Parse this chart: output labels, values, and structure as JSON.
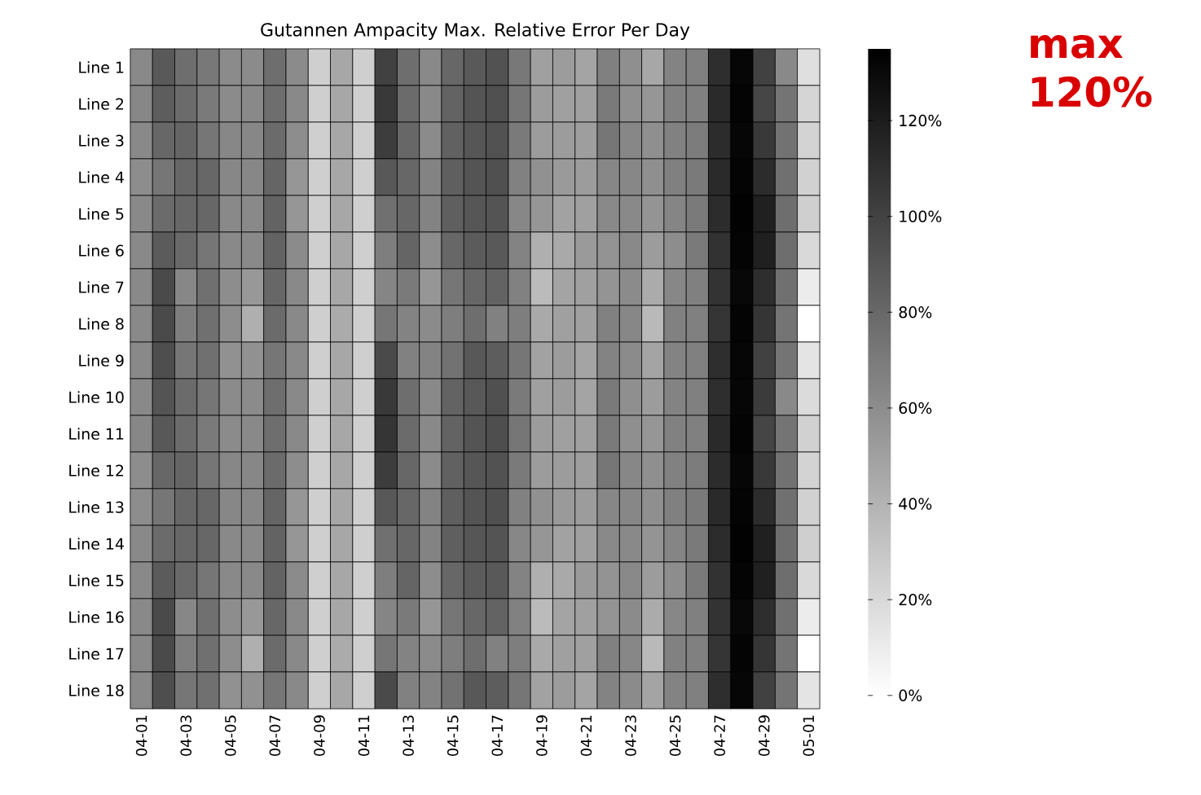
{
  "chart_data": {
    "type": "heatmap",
    "title": "Gutannen Ampacity Max. Relative Error Per Day",
    "categories": [
      "04-01",
      null,
      "04-03",
      null,
      "04-05",
      null,
      "04-07",
      null,
      "04-09",
      null,
      "04-11",
      null,
      "04-13",
      null,
      "04-15",
      null,
      "04-17",
      null,
      "04-19",
      null,
      "04-21",
      null,
      "04-23",
      null,
      "04-25",
      null,
      "04-27",
      null,
      "04-29",
      null,
      "05-01"
    ],
    "y_categories": [
      "Line 1",
      "Line 2",
      "Line 3",
      "Line 4",
      "Line 5",
      "Line 6",
      "Line 7",
      "Line 8",
      "Line 9",
      "Line 10",
      "Line 11",
      "Line 12",
      "Line 13",
      "Line 14",
      "Line 15",
      "Line 16",
      "Line 17",
      "Line 18"
    ],
    "cells": [
      [
        62,
        87,
        76,
        71,
        61,
        61,
        76,
        61,
        25,
        46,
        25,
        100,
        76,
        62,
        80,
        87,
        91,
        71,
        50,
        52,
        48,
        67,
        59,
        46,
        65,
        67,
        110,
        131,
        100,
        62,
        17
      ],
      [
        63,
        85,
        78,
        70,
        61,
        62,
        76,
        62,
        25,
        46,
        25,
        104,
        78,
        62,
        82,
        90,
        92,
        72,
        52,
        50,
        50,
        70,
        59,
        55,
        66,
        67,
        112,
        132,
        97,
        73,
        22
      ],
      [
        62,
        80,
        81,
        72,
        63,
        63,
        78,
        60,
        25,
        46,
        25,
        102,
        80,
        61,
        83,
        89,
        91,
        70,
        52,
        52,
        51,
        72,
        63,
        59,
        66,
        69,
        111,
        131,
        104,
        74,
        23
      ],
      [
        60,
        72,
        80,
        80,
        63,
        63,
        81,
        55,
        25,
        46,
        25,
        88,
        80,
        65,
        84,
        90,
        92,
        66,
        58,
        53,
        52,
        63,
        63,
        59,
        67,
        70,
        112,
        132,
        111,
        75,
        24
      ],
      [
        62,
        78,
        80,
        80,
        62,
        62,
        82,
        55,
        25,
        46,
        25,
        75,
        80,
        65,
        84,
        89,
        90,
        63,
        55,
        49,
        50,
        62,
        62,
        56,
        64,
        70,
        111,
        133,
        117,
        76,
        25
      ],
      [
        62,
        86,
        79,
        72,
        62,
        62,
        82,
        61,
        25,
        46,
        25,
        68,
        81,
        60,
        80,
        86,
        87,
        65,
        42,
        45,
        53,
        57,
        62,
        52,
        60,
        70,
        108,
        132,
        117,
        76,
        20
      ],
      [
        62,
        95,
        63,
        75,
        60,
        54,
        80,
        62,
        25,
        46,
        25,
        64,
        70,
        55,
        72,
        80,
        82,
        66,
        36,
        48,
        50,
        56,
        61,
        44,
        63,
        67,
        107,
        130,
        110,
        75,
        10
      ],
      [
        62,
        95,
        68,
        75,
        60,
        42,
        78,
        62,
        25,
        44,
        25,
        72,
        65,
        61,
        68,
        76,
        66,
        68,
        45,
        50,
        50,
        66,
        63,
        37,
        66,
        67,
        106,
        132,
        106,
        73,
        0
      ],
      [
        62,
        93,
        72,
        75,
        58,
        58,
        72,
        62,
        25,
        46,
        25,
        95,
        66,
        65,
        74,
        88,
        85,
        72,
        49,
        52,
        48,
        65,
        61,
        48,
        65,
        67,
        110,
        131,
        100,
        73,
        14
      ],
      [
        62,
        90,
        78,
        72,
        61,
        61,
        76,
        62,
        25,
        46,
        25,
        104,
        76,
        62,
        82,
        88,
        92,
        70,
        50,
        52,
        48,
        70,
        59,
        52,
        65,
        67,
        110,
        131,
        103,
        62,
        19
      ],
      [
        63,
        88,
        78,
        70,
        61,
        62,
        76,
        62,
        25,
        46,
        25,
        106,
        78,
        62,
        82,
        90,
        93,
        72,
        52,
        50,
        50,
        70,
        59,
        55,
        66,
        67,
        112,
        132,
        98,
        73,
        24
      ],
      [
        60,
        80,
        81,
        72,
        63,
        63,
        78,
        60,
        25,
        46,
        25,
        102,
        80,
        61,
        83,
        89,
        91,
        70,
        52,
        52,
        51,
        72,
        63,
        59,
        66,
        69,
        111,
        131,
        104,
        74,
        23
      ],
      [
        60,
        72,
        80,
        80,
        63,
        63,
        81,
        55,
        25,
        46,
        25,
        88,
        80,
        65,
        84,
        90,
        92,
        66,
        58,
        53,
        52,
        63,
        63,
        59,
        67,
        70,
        112,
        132,
        111,
        75,
        24
      ],
      [
        62,
        78,
        80,
        80,
        62,
        62,
        82,
        55,
        25,
        46,
        25,
        75,
        80,
        65,
        84,
        89,
        90,
        63,
        55,
        49,
        50,
        62,
        62,
        56,
        64,
        70,
        111,
        133,
        117,
        76,
        25
      ],
      [
        62,
        86,
        79,
        72,
        62,
        62,
        82,
        61,
        25,
        46,
        25,
        68,
        81,
        60,
        80,
        86,
        87,
        65,
        42,
        45,
        53,
        57,
        62,
        52,
        60,
        70,
        108,
        132,
        117,
        76,
        20
      ],
      [
        62,
        95,
        63,
        75,
        60,
        54,
        80,
        62,
        25,
        46,
        25,
        64,
        70,
        55,
        72,
        80,
        82,
        66,
        36,
        48,
        50,
        56,
        61,
        44,
        63,
        67,
        107,
        130,
        110,
        75,
        10
      ],
      [
        62,
        95,
        68,
        75,
        60,
        42,
        78,
        62,
        25,
        44,
        25,
        72,
        65,
        61,
        68,
        76,
        66,
        68,
        45,
        50,
        50,
        66,
        63,
        37,
        66,
        67,
        106,
        132,
        106,
        73,
        0
      ],
      [
        62,
        93,
        72,
        75,
        58,
        58,
        72,
        62,
        25,
        46,
        25,
        95,
        66,
        65,
        74,
        88,
        85,
        72,
        49,
        52,
        48,
        65,
        61,
        48,
        65,
        67,
        110,
        131,
        100,
        73,
        14
      ]
    ],
    "clim": [
      0,
      135
    ],
    "cticks": [
      {
        "value": 0,
        "label": "0%"
      },
      {
        "value": 20,
        "label": "20%"
      },
      {
        "value": 40,
        "label": "40%"
      },
      {
        "value": 60,
        "label": "60%"
      },
      {
        "value": 80,
        "label": "80%"
      },
      {
        "value": 100,
        "label": "100%"
      },
      {
        "value": 120,
        "label": "120%"
      }
    ],
    "annotations": [
      "max 120%"
    ]
  }
}
